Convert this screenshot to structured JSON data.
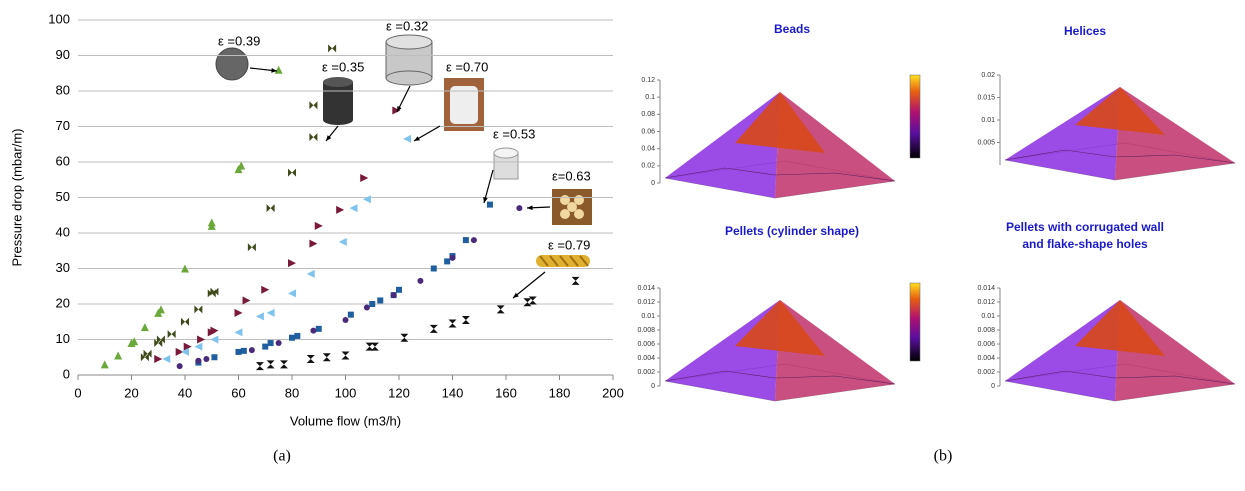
{
  "chart_data": [
    {
      "type": "scatter",
      "xlabel": "Volume flow (m3/h)",
      "ylabel": "Pressure drop (mbar/m)",
      "xlim": [
        0,
        200
      ],
      "xticks": [
        0,
        20,
        40,
        60,
        80,
        100,
        120,
        140,
        160,
        180,
        200
      ],
      "ylim": [
        0,
        100
      ],
      "yticks": [
        0,
        10,
        20,
        30,
        40,
        50,
        60,
        70,
        80,
        90,
        100
      ],
      "grid": true,
      "series": [
        {
          "name": "ε =0.39",
          "color": "#6aa83a",
          "marker": "triangle-up",
          "x": [
            10,
            15,
            20,
            21,
            25,
            30,
            31,
            40,
            50,
            50,
            60,
            61,
            75
          ],
          "values": [
            3,
            5.5,
            9,
            9.5,
            13.5,
            17.5,
            18.5,
            30,
            42,
            43,
            58,
            59,
            86
          ]
        },
        {
          "name": "ε =0.35",
          "color": "#3f4a1a",
          "marker": "bowtie",
          "x": [
            25,
            26,
            30,
            31,
            35,
            40,
            45,
            50,
            51,
            65,
            72,
            80,
            88,
            88,
            95
          ],
          "values": [
            5,
            6,
            9,
            10,
            11.5,
            15,
            18.5,
            23,
            23.5,
            36,
            47,
            57,
            67,
            76,
            92
          ]
        },
        {
          "name": "ε =0.32",
          "color": "#7a1a3a",
          "marker": "triangle-right",
          "x": [
            30,
            38,
            41,
            46,
            50,
            51,
            60,
            63,
            70,
            80,
            88,
            90,
            98,
            107,
            119
          ],
          "values": [
            4.5,
            6.5,
            8,
            10,
            12,
            12.5,
            17.5,
            21,
            24,
            31.5,
            37,
            42,
            46.5,
            55.5,
            74.5
          ]
        },
        {
          "name": "ε =0.70",
          "color": "#7fc4ee",
          "marker": "triangle-left",
          "x": [
            33,
            40,
            45,
            51,
            60,
            68,
            72,
            80,
            87,
            99,
            103,
            108,
            123
          ],
          "values": [
            4.5,
            6.5,
            8,
            10,
            12,
            16.5,
            17.5,
            23,
            28.5,
            37.5,
            47,
            49.5,
            66.5
          ]
        },
        {
          "name": "ε =0.53",
          "color": "#1f5fa0",
          "marker": "square",
          "x": [
            45,
            51,
            60,
            62,
            70,
            72,
            80,
            82,
            90,
            102,
            110,
            113,
            118,
            120,
            133,
            138,
            140,
            145,
            154
          ],
          "values": [
            3.5,
            5,
            6.5,
            6.8,
            8,
            9,
            10.5,
            11,
            13,
            17,
            20,
            21,
            22.5,
            24,
            30,
            32,
            33.5,
            38,
            48
          ]
        },
        {
          "name": "ε=0.63",
          "color": "#4a2a7a",
          "marker": "circle",
          "x": [
            38,
            45,
            48,
            65,
            75,
            88,
            100,
            108,
            118,
            128,
            140,
            148,
            165
          ],
          "values": [
            2.5,
            4,
            4.5,
            7,
            9,
            12.5,
            15.5,
            19,
            22.5,
            26.5,
            33,
            38,
            47
          ]
        },
        {
          "name": "ε =0.79",
          "color": "#111111",
          "marker": "hourglass",
          "x": [
            68,
            72,
            77,
            87,
            93,
            100,
            109,
            111,
            122,
            133,
            140,
            145,
            158,
            168,
            170,
            186
          ],
          "values": [
            2.5,
            3,
            3,
            4.5,
            5,
            5.5,
            8,
            8,
            10.5,
            13,
            14.5,
            15.5,
            18.5,
            20.5,
            21,
            26.5
          ]
        }
      ]
    },
    {
      "type": "surface",
      "title": [
        "Beads"
      ],
      "zlim": [
        0,
        0.12
      ],
      "zticks": [
        0,
        0.02,
        0.04,
        0.06,
        0.08,
        0.1,
        0.12
      ]
    },
    {
      "type": "surface",
      "title": [
        "Helices"
      ],
      "zlim": [
        0,
        0.02
      ],
      "zticks": [
        0.005,
        0.01,
        0.015,
        0.02
      ]
    },
    {
      "type": "surface",
      "title": [
        "Pellets (cylinder shape)"
      ],
      "zlim": [
        0,
        0.014
      ],
      "zticks": [
        0,
        0.002,
        0.004,
        0.006,
        0.008,
        0.01,
        0.012,
        0.014
      ]
    },
    {
      "type": "surface",
      "title": [
        "Pellets with corrugated wall",
        "and flake-shape  holes"
      ],
      "zlim": [
        0,
        0.014
      ],
      "zticks": [
        0,
        0.002,
        0.004,
        0.006,
        0.008,
        0.01,
        0.012,
        0.014
      ]
    }
  ],
  "captions": [
    "(a)",
    "(b)"
  ]
}
